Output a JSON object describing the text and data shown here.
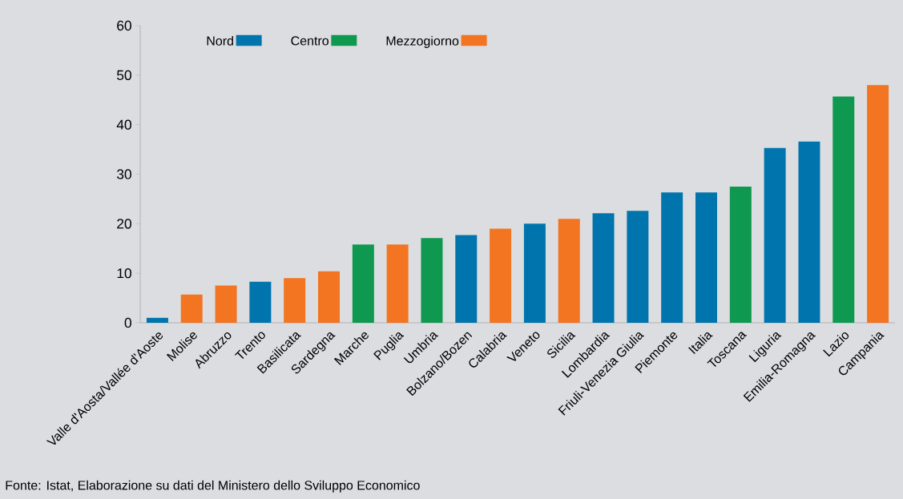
{
  "chart_data": {
    "type": "bar",
    "categories": [
      "Valle d'Aosta/Vallée d'Aoste",
      "Molise",
      "Abruzzo",
      "Trento",
      "Basilicata",
      "Sardegna",
      "Marche",
      "Puglia",
      "Umbria",
      "Bolzano/Bozen",
      "Calabria",
      "Veneto",
      "Sicilia",
      "Lombardia",
      "Friuli-Venezia Giulia",
      "Piemonte",
      "Italia",
      "Toscana",
      "Liguria",
      "Emilia-Romagna",
      "Lazio",
      "Campania"
    ],
    "series": [
      {
        "name": "Nord",
        "color": "#0075ad",
        "values": [
          1.0,
          null,
          null,
          8.3,
          null,
          null,
          null,
          null,
          null,
          17.7,
          null,
          20.0,
          null,
          22.1,
          22.6,
          26.3,
          26.3,
          null,
          35.3,
          36.6,
          null,
          null
        ]
      },
      {
        "name": "Centro",
        "color": "#0f9950",
        "values": [
          null,
          null,
          null,
          null,
          null,
          null,
          15.8,
          null,
          17.1,
          null,
          null,
          null,
          null,
          null,
          null,
          null,
          null,
          27.5,
          null,
          null,
          45.7,
          null
        ]
      },
      {
        "name": "Mezzogiorno",
        "color": "#f37421",
        "values": [
          null,
          5.7,
          7.5,
          null,
          9.0,
          10.4,
          null,
          15.8,
          null,
          null,
          19.0,
          null,
          21.0,
          null,
          null,
          null,
          null,
          null,
          null,
          null,
          null,
          48.0
        ]
      }
    ],
    "ylim": [
      0,
      60
    ],
    "yticks": [
      0,
      10,
      20,
      30,
      40,
      50,
      60
    ],
    "legend": "top left",
    "annotations": [
      "Fonte: Istat, Elaborazione su dati del Ministero dello Sviluppo Economico"
    ]
  }
}
